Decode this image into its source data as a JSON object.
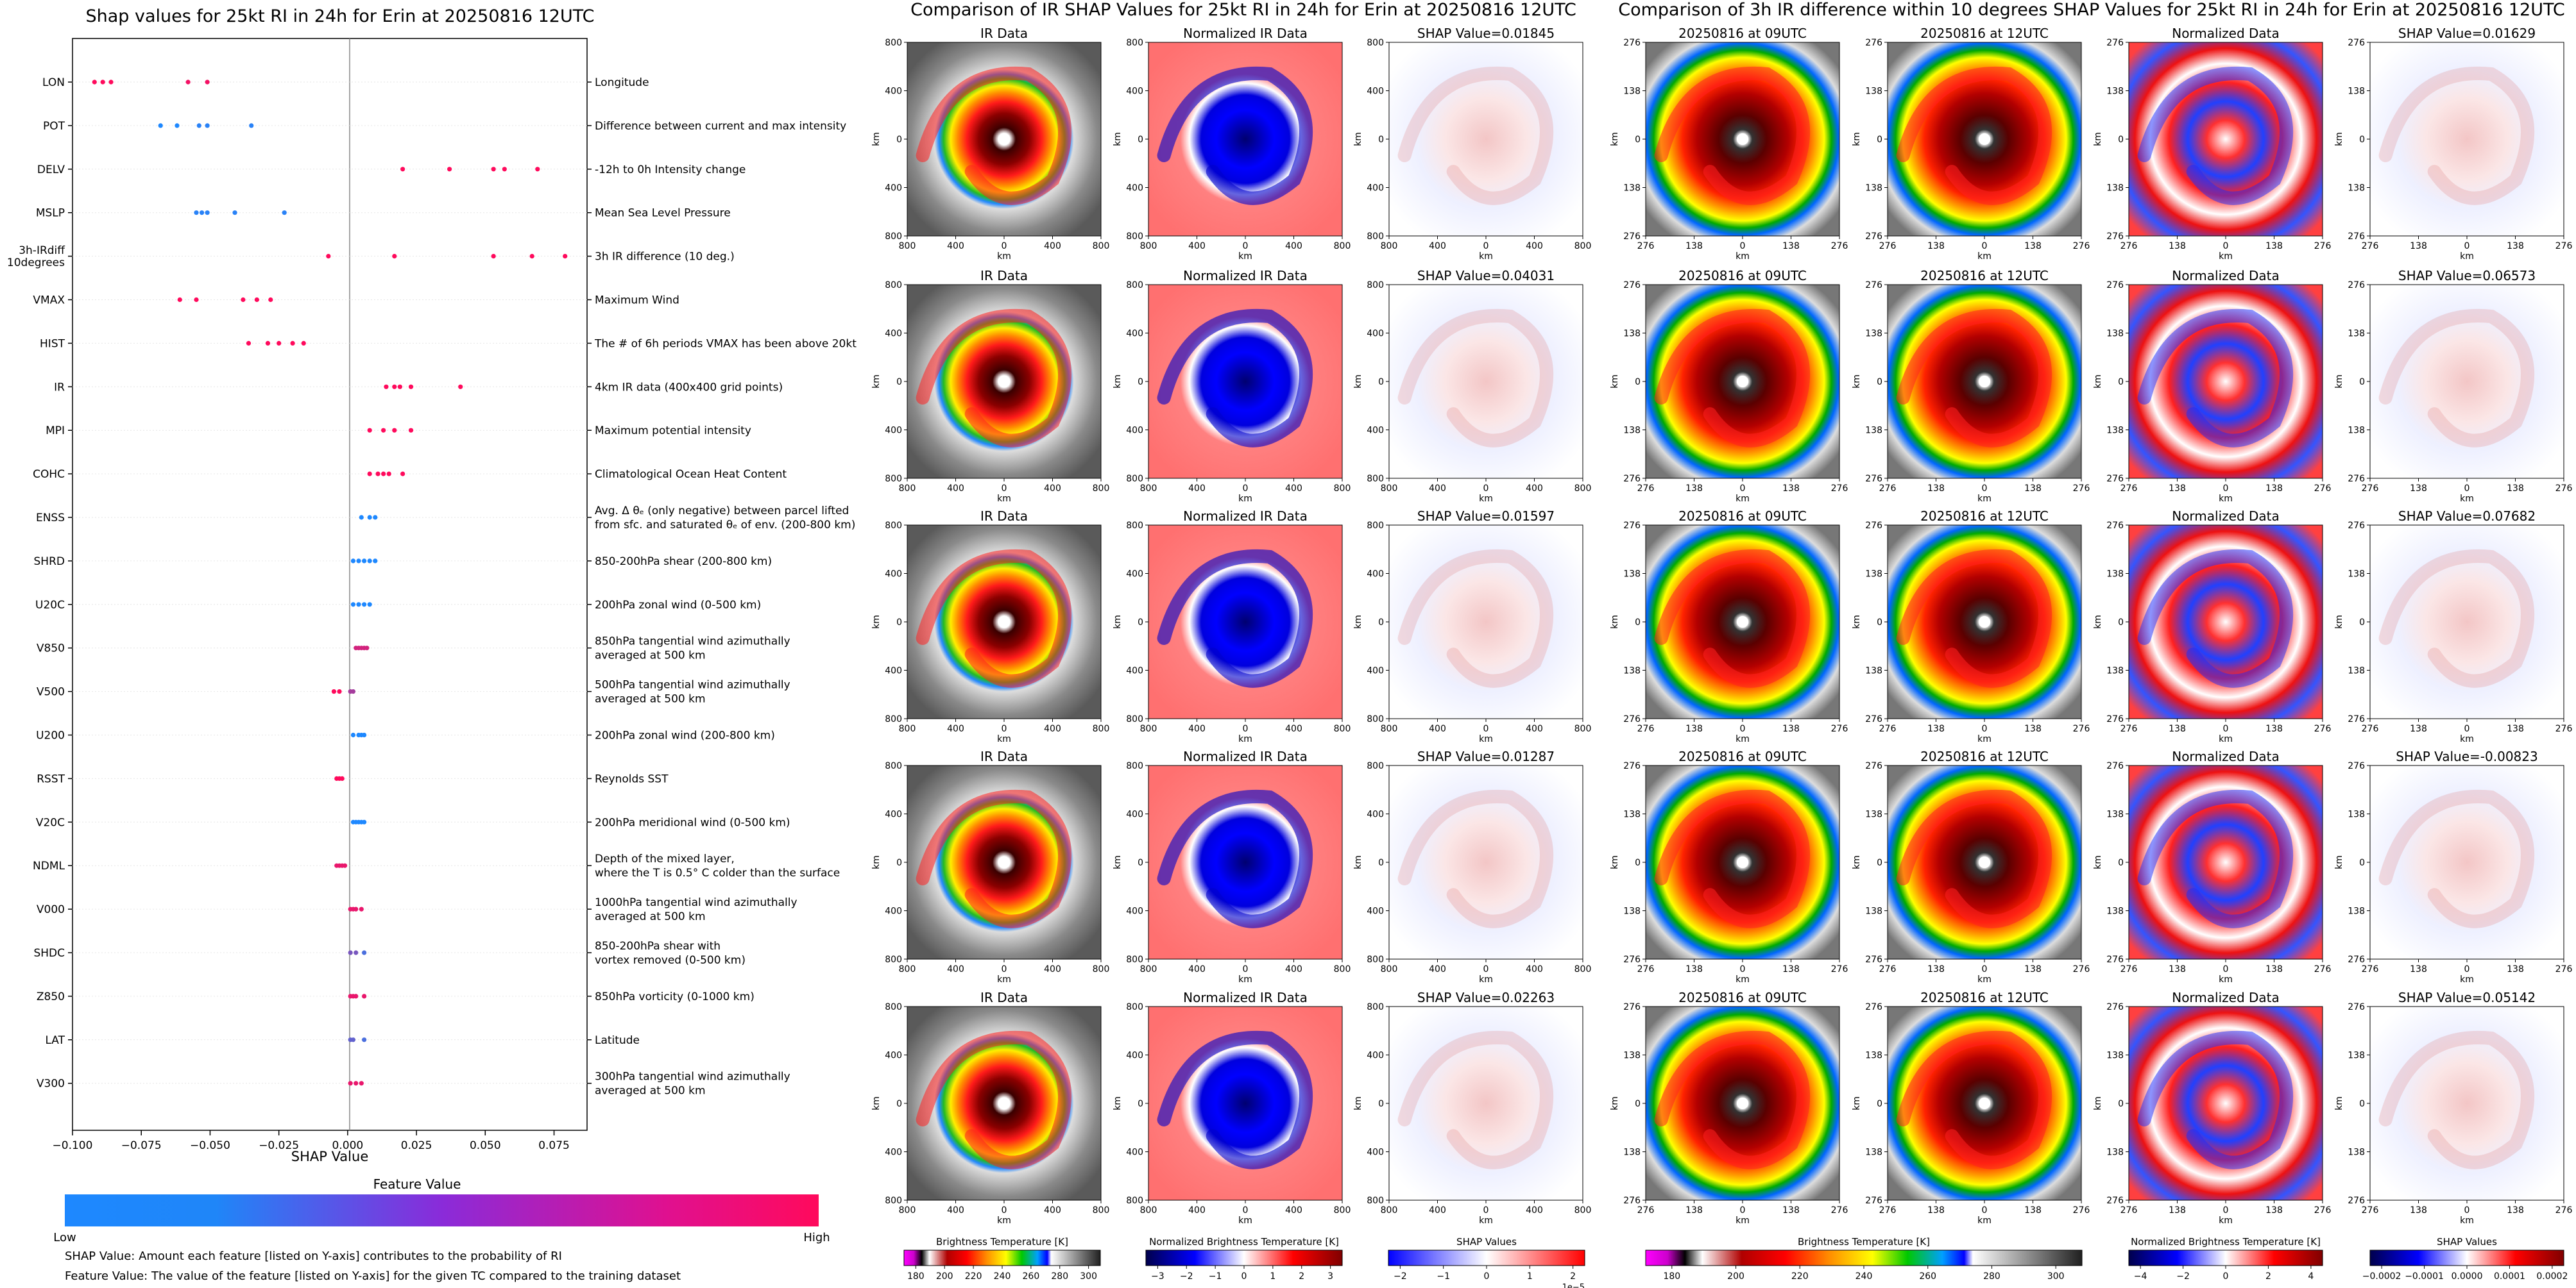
{
  "left_panel": {
    "title": "Shap values for 25kt RI in 24h for Erin at 20250816 12UTC",
    "xlabel": "SHAP Value",
    "xticks": [
      "−0.100",
      "−0.075",
      "−0.050",
      "−0.025",
      "0.000",
      "0.025",
      "0.050",
      "0.075"
    ],
    "colorbar_title": "Feature Value",
    "colorbar_low": "Low",
    "colorbar_high": "High",
    "footnote_1": "SHAP Value: Amount each feature [listed on Y-axis] contributes to the probability of RI",
    "footnote_2": "Feature Value: The value of the feature [listed on Y-axis] for the given TC compared to the training dataset"
  },
  "chart_data": [
    {
      "type": "scatter",
      "title": "Shap values for 25kt RI in 24h for Erin at 20250816 12UTC",
      "xlabel": "SHAP Value",
      "xlim": [
        -0.1,
        0.087
      ],
      "color_scale": {
        "low": "#1e88ff",
        "high": "#ff0a5c",
        "label": "Feature Value"
      },
      "features": [
        {
          "code": "LON",
          "desc": [
            "Longitude"
          ],
          "points": [
            {
              "x": -0.092,
              "v": 1
            },
            {
              "x": -0.089,
              "v": 1
            },
            {
              "x": -0.086,
              "v": 1
            },
            {
              "x": -0.058,
              "v": 0.95
            },
            {
              "x": -0.051,
              "v": 0.95
            }
          ]
        },
        {
          "code": "POT",
          "desc": [
            "Difference between current and max intensity"
          ],
          "points": [
            {
              "x": -0.068,
              "v": 0
            },
            {
              "x": -0.062,
              "v": 0
            },
            {
              "x": -0.054,
              "v": 0.05
            },
            {
              "x": -0.051,
              "v": 0.05
            },
            {
              "x": -0.035,
              "v": 0.05
            }
          ]
        },
        {
          "code": "DELV",
          "desc": [
            "-12h to 0h Intensity change"
          ],
          "points": [
            {
              "x": 0.02,
              "v": 1
            },
            {
              "x": 0.037,
              "v": 1
            },
            {
              "x": 0.053,
              "v": 1
            },
            {
              "x": 0.057,
              "v": 1
            },
            {
              "x": 0.069,
              "v": 1
            }
          ]
        },
        {
          "code": "MSLP",
          "desc": [
            "Mean Sea Level Pressure"
          ],
          "points": [
            {
              "x": -0.055,
              "v": 0.05
            },
            {
              "x": -0.053,
              "v": 0.05
            },
            {
              "x": -0.051,
              "v": 0.05
            },
            {
              "x": -0.041,
              "v": 0.05
            },
            {
              "x": -0.023,
              "v": 0.05
            }
          ]
        },
        {
          "code": "3h-IRdiff\n10degrees",
          "desc": [
            "3h IR difference (10 deg.)"
          ],
          "points": [
            {
              "x": -0.007,
              "v": 1
            },
            {
              "x": 0.017,
              "v": 1
            },
            {
              "x": 0.053,
              "v": 1
            },
            {
              "x": 0.067,
              "v": 1
            },
            {
              "x": 0.079,
              "v": 1
            }
          ]
        },
        {
          "code": "VMAX",
          "desc": [
            "Maximum Wind"
          ],
          "points": [
            {
              "x": -0.061,
              "v": 1
            },
            {
              "x": -0.055,
              "v": 1
            },
            {
              "x": -0.038,
              "v": 1
            },
            {
              "x": -0.033,
              "v": 1
            },
            {
              "x": -0.028,
              "v": 1
            }
          ]
        },
        {
          "code": "HIST",
          "desc": [
            "The # of 6h periods VMAX has been above 20kt"
          ],
          "points": [
            {
              "x": -0.036,
              "v": 1
            },
            {
              "x": -0.029,
              "v": 1
            },
            {
              "x": -0.025,
              "v": 1
            },
            {
              "x": -0.02,
              "v": 1
            },
            {
              "x": -0.016,
              "v": 1
            }
          ]
        },
        {
          "code": "IR",
          "desc": [
            "4km IR data (400x400 grid points)"
          ],
          "points": [
            {
              "x": 0.014,
              "v": 1
            },
            {
              "x": 0.017,
              "v": 1
            },
            {
              "x": 0.019,
              "v": 1
            },
            {
              "x": 0.023,
              "v": 1
            },
            {
              "x": 0.041,
              "v": 1
            }
          ]
        },
        {
          "code": "MPI",
          "desc": [
            "Maximum potential intensity"
          ],
          "points": [
            {
              "x": 0.008,
              "v": 1
            },
            {
              "x": 0.013,
              "v": 1
            },
            {
              "x": 0.017,
              "v": 1
            },
            {
              "x": 0.023,
              "v": 1
            }
          ]
        },
        {
          "code": "COHC",
          "desc": [
            "Climatological Ocean Heat Content"
          ],
          "points": [
            {
              "x": 0.008,
              "v": 1
            },
            {
              "x": 0.011,
              "v": 1
            },
            {
              "x": 0.013,
              "v": 1
            },
            {
              "x": 0.015,
              "v": 1
            },
            {
              "x": 0.02,
              "v": 1
            }
          ]
        },
        {
          "code": "ENSS",
          "desc": [
            "Avg. Δ θₑ (only negative) between parcel lifted",
            "from sfc. and saturated θₑ of env. (200-800 km)"
          ],
          "points": [
            {
              "x": 0.005,
              "v": 0
            },
            {
              "x": 0.008,
              "v": 0
            },
            {
              "x": 0.01,
              "v": 0
            }
          ]
        },
        {
          "code": "SHRD",
          "desc": [
            "850-200hPa shear (200-800 km)"
          ],
          "points": [
            {
              "x": 0.002,
              "v": 0
            },
            {
              "x": 0.004,
              "v": 0
            },
            {
              "x": 0.006,
              "v": 0
            },
            {
              "x": 0.008,
              "v": 0
            },
            {
              "x": 0.01,
              "v": 0
            }
          ]
        },
        {
          "code": "U20C",
          "desc": [
            "200hPa zonal wind (0-500 km)"
          ],
          "points": [
            {
              "x": 0.002,
              "v": 0
            },
            {
              "x": 0.004,
              "v": 0
            },
            {
              "x": 0.006,
              "v": 0
            },
            {
              "x": 0.008,
              "v": 0
            }
          ]
        },
        {
          "code": "V850",
          "desc": [
            "850hPa tangential wind azimuthally",
            "averaged at 500 km"
          ],
          "points": [
            {
              "x": 0.003,
              "v": 0.8
            },
            {
              "x": 0.004,
              "v": 0.8
            },
            {
              "x": 0.005,
              "v": 0.8
            },
            {
              "x": 0.006,
              "v": 0.8
            },
            {
              "x": 0.007,
              "v": 0.8
            }
          ]
        },
        {
          "code": "V500",
          "desc": [
            "500hPa tangential wind azimuthally",
            "averaged at 500 km"
          ],
          "points": [
            {
              "x": -0.005,
              "v": 1
            },
            {
              "x": -0.003,
              "v": 1
            },
            {
              "x": 0.001,
              "v": 0.6
            },
            {
              "x": 0.002,
              "v": 0.6
            }
          ]
        },
        {
          "code": "U200",
          "desc": [
            "200hPa zonal wind (200-800 km)"
          ],
          "points": [
            {
              "x": 0.002,
              "v": 0
            },
            {
              "x": 0.004,
              "v": 0
            },
            {
              "x": 0.005,
              "v": 0
            },
            {
              "x": 0.006,
              "v": 0
            }
          ]
        },
        {
          "code": "RSST",
          "desc": [
            "Reynolds SST"
          ],
          "points": [
            {
              "x": -0.004,
              "v": 1
            },
            {
              "x": -0.003,
              "v": 1
            },
            {
              "x": -0.002,
              "v": 1
            }
          ]
        },
        {
          "code": "V20C",
          "desc": [
            "200hPa meridional wind (0-500 km)"
          ],
          "points": [
            {
              "x": 0.002,
              "v": 0
            },
            {
              "x": 0.003,
              "v": 0
            },
            {
              "x": 0.004,
              "v": 0
            },
            {
              "x": 0.005,
              "v": 0
            },
            {
              "x": 0.006,
              "v": 0
            }
          ]
        },
        {
          "code": "NDML",
          "desc": [
            "Depth of the mixed layer,",
            "where the T is 0.5° C colder than the surface"
          ],
          "points": [
            {
              "x": -0.004,
              "v": 0.9
            },
            {
              "x": -0.003,
              "v": 0.9
            },
            {
              "x": -0.002,
              "v": 0.9
            },
            {
              "x": -0.001,
              "v": 0.9
            }
          ]
        },
        {
          "code": "V000",
          "desc": [
            "1000hPa tangential wind azimuthally",
            "averaged at 500 km"
          ],
          "points": [
            {
              "x": 0.001,
              "v": 0.9
            },
            {
              "x": 0.002,
              "v": 0.9
            },
            {
              "x": 0.003,
              "v": 0.9
            },
            {
              "x": 0.005,
              "v": 0.9
            }
          ]
        },
        {
          "code": "SHDC",
          "desc": [
            "850-200hPa shear with",
            "vortex removed (0-500 km)"
          ],
          "points": [
            {
              "x": 0.001,
              "v": 0.4
            },
            {
              "x": 0.003,
              "v": 0.4
            },
            {
              "x": 0.006,
              "v": 0.2
            }
          ]
        },
        {
          "code": "Z850",
          "desc": [
            "850hPa vorticity (0-1000 km)"
          ],
          "points": [
            {
              "x": 0.001,
              "v": 0.9
            },
            {
              "x": 0.002,
              "v": 0.9
            },
            {
              "x": 0.003,
              "v": 0.9
            },
            {
              "x": 0.006,
              "v": 0.9
            }
          ]
        },
        {
          "code": "LAT",
          "desc": [
            "Latitude"
          ],
          "points": [
            {
              "x": 0.001,
              "v": 0.3
            },
            {
              "x": 0.002,
              "v": 0.3
            },
            {
              "x": 0.006,
              "v": 0.2
            }
          ]
        },
        {
          "code": "V300",
          "desc": [
            "300hPa tangential wind azimuthally",
            "averaged at 500 km"
          ],
          "points": [
            {
              "x": 0.001,
              "v": 0.9
            },
            {
              "x": 0.003,
              "v": 0.9
            },
            {
              "x": 0.005,
              "v": 0.9
            }
          ]
        }
      ]
    },
    {
      "type": "heatmap",
      "title": "Comparison of IR SHAP Values for 25kt RI in 24h for Erin at 20250816 12UTC",
      "column_titles": [
        "IR Data",
        "Normalized IR Data"
      ],
      "shap_titles": [
        "SHAP Value=0.01845",
        "SHAP Value=0.04031",
        "SHAP Value=0.01597",
        "SHAP Value=0.01287",
        "SHAP Value=0.02263"
      ],
      "x_ticks": [
        "800",
        "400",
        "0",
        "400",
        "800"
      ],
      "y_ticks": [
        "800",
        "400",
        "0",
        "400",
        "800"
      ],
      "axis_unit": "km",
      "colorbars": [
        {
          "label": "Brightness Temperature [K]",
          "ticks": [
            "180",
            "200",
            "220",
            "240",
            "260",
            "280",
            "300"
          ]
        },
        {
          "label": "Normalized Brightness Temperature [K]",
          "ticks": [
            "−3",
            "−2",
            "−1",
            "0",
            "1",
            "2",
            "3"
          ]
        },
        {
          "label": "SHAP Values",
          "ticks": [
            "−2",
            "−1",
            "0",
            "1",
            "2"
          ],
          "offset": "1e−5"
        }
      ]
    },
    {
      "type": "heatmap",
      "title": "Comparison of 3h IR difference within 10 degrees SHAP Values for 25kt RI in 24h for Erin at 20250816 12UTC",
      "column_titles": [
        "20250816 at 09UTC",
        "20250816 at 12UTC",
        "Normalized Data"
      ],
      "shap_titles": [
        "SHAP Value=0.01629",
        "SHAP Value=0.06573",
        "SHAP Value=0.07682",
        "SHAP Value=-0.00823",
        "SHAP Value=0.05142"
      ],
      "x_ticks": [
        "276",
        "138",
        "0",
        "138",
        "276"
      ],
      "y_ticks": [
        "276",
        "138",
        "0",
        "138",
        "276"
      ],
      "axis_unit": "km",
      "colorbars": [
        {
          "label": "Brightness Temperature [K]",
          "ticks": [
            "180",
            "200",
            "220",
            "240",
            "260",
            "280",
            "300"
          ]
        },
        {
          "label": "Normalized Brightness Temperature [K]",
          "ticks": [
            "−4",
            "−2",
            "0",
            "2",
            "4"
          ]
        },
        {
          "label": "SHAP Values",
          "ticks": [
            "−0.0002",
            "−0.0001",
            "0.0000",
            "0.0001",
            "0.0002"
          ]
        }
      ]
    }
  ]
}
